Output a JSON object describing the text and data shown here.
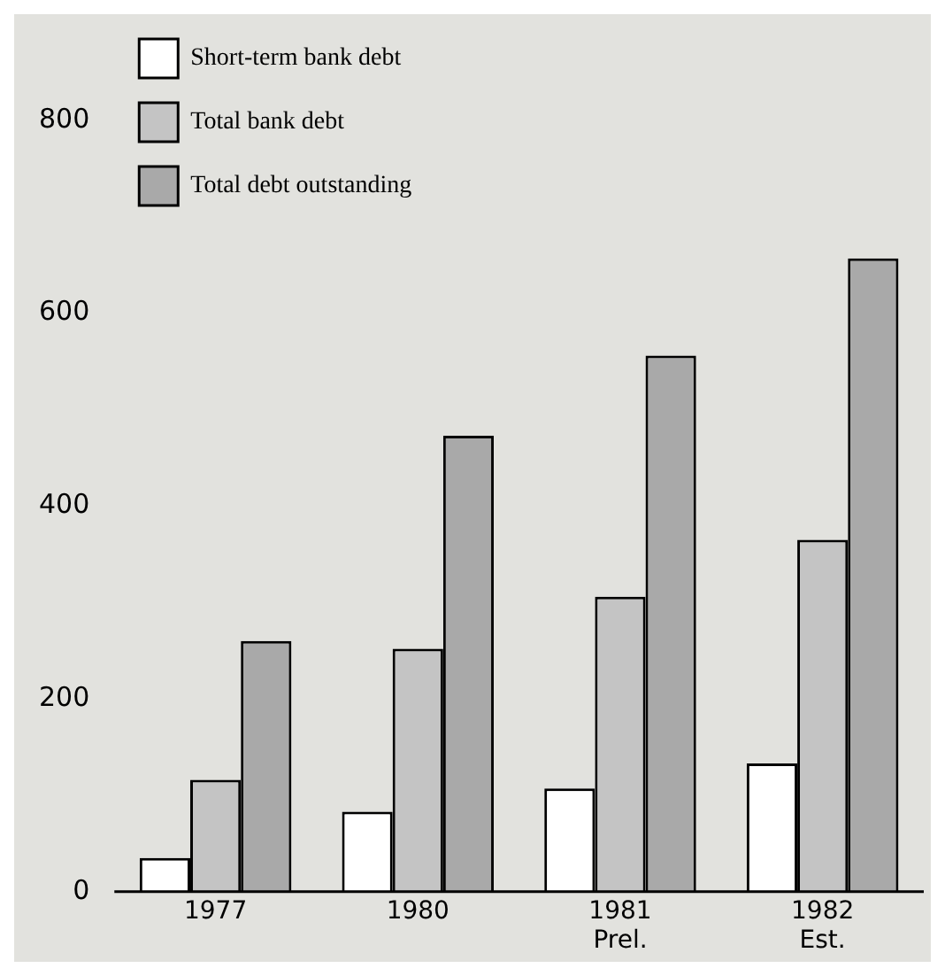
{
  "chart_data": {
    "type": "bar",
    "categories": [
      "1977",
      "1980",
      "1981\nPrel.",
      "1982\nEst."
    ],
    "series": [
      {
        "name": "Short-term bank debt",
        "color": "#ffffff",
        "values": [
          35,
          83,
          107,
          133
        ]
      },
      {
        "name": "Total bank debt",
        "color": "#c4c4c4",
        "values": [
          116,
          252,
          306,
          365
        ]
      },
      {
        "name": "Total debt outstanding",
        "color": "#a9a9a9",
        "values": [
          260,
          473,
          556,
          657
        ]
      }
    ],
    "ylim": [
      0,
      800
    ],
    "yticks": [
      0,
      200,
      400,
      600,
      800
    ],
    "grid": false,
    "legend": "top left"
  }
}
